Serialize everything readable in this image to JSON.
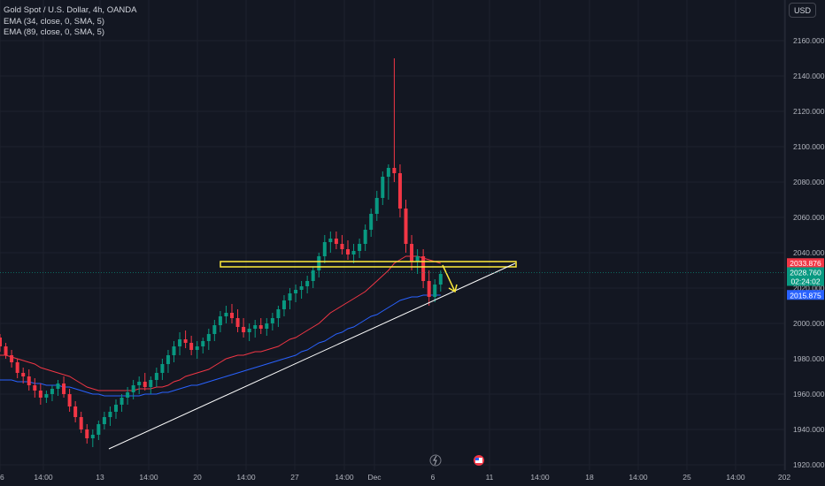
{
  "chart_data": {
    "type": "candlestick",
    "title": "Gold Spot / U.S. Dollar, 4h, OANDA",
    "indicators": [
      {
        "label": "EMA (34, close, 0, SMA, 5)",
        "color": "#f23645"
      },
      {
        "label": "EMA (89, close, 0, SMA, 5)",
        "color": "#2962ff"
      }
    ],
    "currency": "USD",
    "ylim": [
      1917,
      2183
    ],
    "y_ticks": [
      "2160.000",
      "2140.000",
      "2120.000",
      "2100.000",
      "2080.000",
      "2060.000",
      "2040.000",
      "2020.000",
      "2000.000",
      "1980.000",
      "1960.000",
      "1940.000",
      "1920.000"
    ],
    "y_tick_values": [
      2160,
      2140,
      2120,
      2100,
      2080,
      2060,
      2040,
      2020,
      2000,
      1980,
      1960,
      1940,
      1920
    ],
    "x_ticks": [
      "6",
      "14:00",
      "13",
      "14:00",
      "20",
      "14:00",
      "27",
      "14:00",
      "Dec",
      "6",
      "11",
      "14:00",
      "18",
      "14:00",
      "25",
      "14:00",
      "202"
    ],
    "price_badges": [
      {
        "value": 2033.876,
        "label": "2033.876",
        "color": "#f23645"
      },
      {
        "value": 2028.76,
        "label": "2028.760",
        "color": "#089981"
      },
      {
        "label": "02:24:02",
        "color": "#089981"
      },
      {
        "value": 2015.875,
        "label": "2015.875",
        "color": "#2962ff"
      }
    ],
    "candles": [
      [
        1992,
        1994,
        1984,
        1987
      ],
      [
        1987,
        1989,
        1980,
        1982
      ],
      [
        1982,
        1985,
        1975,
        1978
      ],
      [
        1978,
        1980,
        1969,
        1972
      ],
      [
        1972,
        1975,
        1966,
        1970
      ],
      [
        1970,
        1974,
        1962,
        1965
      ],
      [
        1965,
        1969,
        1958,
        1962
      ],
      [
        1962,
        1966,
        1954,
        1958
      ],
      [
        1958,
        1962,
        1955,
        1960
      ],
      [
        1960,
        1965,
        1956,
        1963
      ],
      [
        1963,
        1968,
        1959,
        1966
      ],
      [
        1966,
        1970,
        1958,
        1960
      ],
      [
        1960,
        1963,
        1950,
        1953
      ],
      [
        1953,
        1956,
        1944,
        1947
      ],
      [
        1947,
        1950,
        1938,
        1940
      ],
      [
        1940,
        1943,
        1932,
        1935
      ],
      [
        1935,
        1940,
        1930,
        1937
      ],
      [
        1937,
        1945,
        1934,
        1943
      ],
      [
        1943,
        1950,
        1940,
        1947
      ],
      [
        1947,
        1953,
        1942,
        1950
      ],
      [
        1950,
        1957,
        1946,
        1954
      ],
      [
        1954,
        1960,
        1950,
        1958
      ],
      [
        1958,
        1964,
        1954,
        1961
      ],
      [
        1961,
        1968,
        1957,
        1965
      ],
      [
        1965,
        1970,
        1960,
        1967
      ],
      [
        1967,
        1972,
        1962,
        1964
      ],
      [
        1964,
        1970,
        1960,
        1968
      ],
      [
        1968,
        1975,
        1964,
        1972
      ],
      [
        1972,
        1980,
        1968,
        1977
      ],
      [
        1977,
        1985,
        1972,
        1982
      ],
      [
        1982,
        1990,
        1978,
        1987
      ],
      [
        1987,
        1995,
        1982,
        1991
      ],
      [
        1991,
        1996,
        1986,
        1989
      ],
      [
        1989,
        1993,
        1982,
        1985
      ],
      [
        1985,
        1990,
        1980,
        1987
      ],
      [
        1987,
        1992,
        1983,
        1990
      ],
      [
        1990,
        1997,
        1985,
        1994
      ],
      [
        1994,
        2002,
        1990,
        1999
      ],
      [
        1999,
        2007,
        1995,
        2004
      ],
      [
        2004,
        2010,
        2000,
        2006
      ],
      [
        2006,
        2011,
        2000,
        2003
      ],
      [
        2003,
        2008,
        1995,
        1998
      ],
      [
        1998,
        2003,
        1992,
        1995
      ],
      [
        1995,
        2000,
        1990,
        1997
      ],
      [
        1997,
        2002,
        1992,
        1999
      ],
      [
        1999,
        2003,
        1994,
        1997
      ],
      [
        1997,
        2003,
        1993,
        2000
      ],
      [
        2000,
        2006,
        1996,
        2003
      ],
      [
        2003,
        2010,
        1998,
        2008
      ],
      [
        2008,
        2016,
        2004,
        2013
      ],
      [
        2013,
        2020,
        2008,
        2017
      ],
      [
        2017,
        2022,
        2012,
        2019
      ],
      [
        2019,
        2024,
        2014,
        2021
      ],
      [
        2021,
        2027,
        2017,
        2024
      ],
      [
        2024,
        2032,
        2020,
        2030
      ],
      [
        2030,
        2040,
        2026,
        2038
      ],
      [
        2038,
        2050,
        2034,
        2046
      ],
      [
        2046,
        2052,
        2040,
        2048
      ],
      [
        2048,
        2052,
        2042,
        2045
      ],
      [
        2045,
        2050,
        2039,
        2042
      ],
      [
        2042,
        2047,
        2036,
        2039
      ],
      [
        2039,
        2045,
        2034,
        2041
      ],
      [
        2041,
        2048,
        2037,
        2045
      ],
      [
        2045,
        2056,
        2041,
        2053
      ],
      [
        2053,
        2065,
        2049,
        2062
      ],
      [
        2062,
        2075,
        2058,
        2071
      ],
      [
        2071,
        2086,
        2067,
        2083
      ],
      [
        2083,
        2090,
        2070,
        2088
      ],
      [
        2088,
        2150,
        2080,
        2085
      ],
      [
        2085,
        2090,
        2060,
        2065
      ],
      [
        2065,
        2070,
        2040,
        2045
      ],
      [
        2045,
        2050,
        2030,
        2035
      ],
      [
        2035,
        2042,
        2028,
        2038
      ],
      [
        2038,
        2042,
        2020,
        2024
      ],
      [
        2024,
        2030,
        2010,
        2015
      ],
      [
        2015,
        2025,
        2012,
        2022
      ],
      [
        2022,
        2030,
        2018,
        2028
      ]
    ],
    "ema34": [
      1982,
      1982,
      1981,
      1980,
      1979,
      1978,
      1977,
      1975,
      1974,
      1973,
      1972,
      1971,
      1970,
      1968,
      1966,
      1964,
      1963,
      1962,
      1962,
      1962,
      1962,
      1962,
      1962,
      1962,
      1963,
      1963,
      1963,
      1964,
      1964,
      1965,
      1967,
      1968,
      1970,
      1971,
      1972,
      1973,
      1974,
      1976,
      1978,
      1980,
      1981,
      1982,
      1982,
      1983,
      1984,
      1984,
      1985,
      1986,
      1987,
      1989,
      1991,
      1992,
      1994,
      1996,
      1998,
      2000,
      2003,
      2006,
      2008,
      2010,
      2012,
      2014,
      2016,
      2018,
      2021,
      2024,
      2027,
      2030,
      2034,
      2036,
      2038,
      2038,
      2038,
      2037,
      2036,
      2035,
      2034
    ],
    "ema89": [
      1968,
      1968,
      1968,
      1967,
      1967,
      1967,
      1966,
      1966,
      1965,
      1965,
      1965,
      1964,
      1964,
      1963,
      1962,
      1961,
      1960,
      1960,
      1959,
      1959,
      1959,
      1959,
      1959,
      1959,
      1959,
      1960,
      1960,
      1960,
      1961,
      1961,
      1962,
      1963,
      1964,
      1965,
      1965,
      1966,
      1967,
      1968,
      1969,
      1970,
      1971,
      1972,
      1973,
      1974,
      1975,
      1976,
      1977,
      1978,
      1979,
      1980,
      1981,
      1982,
      1984,
      1985,
      1987,
      1989,
      1990,
      1992,
      1994,
      1995,
      1997,
      1998,
      2000,
      2002,
      2004,
      2005,
      2007,
      2009,
      2011,
      2013,
      2014,
      2015,
      2015,
      2016,
      2016,
      2016,
      2016
    ],
    "drawings": {
      "resistance_zone": {
        "x_start": "Nov 22",
        "x_end": "Dec 8",
        "y_low": 2032,
        "y_high": 2035,
        "color": "#ffeb3b"
      },
      "trendline": {
        "from": [
          "Nov 13",
          1929
        ],
        "to": [
          "Dec 8",
          2034
        ],
        "color": "#ffffff"
      },
      "arrow": {
        "from": [
          "Dec 6",
          2033
        ],
        "to": [
          "Dec 7",
          2018
        ],
        "color": "#ffeb3b"
      }
    }
  }
}
